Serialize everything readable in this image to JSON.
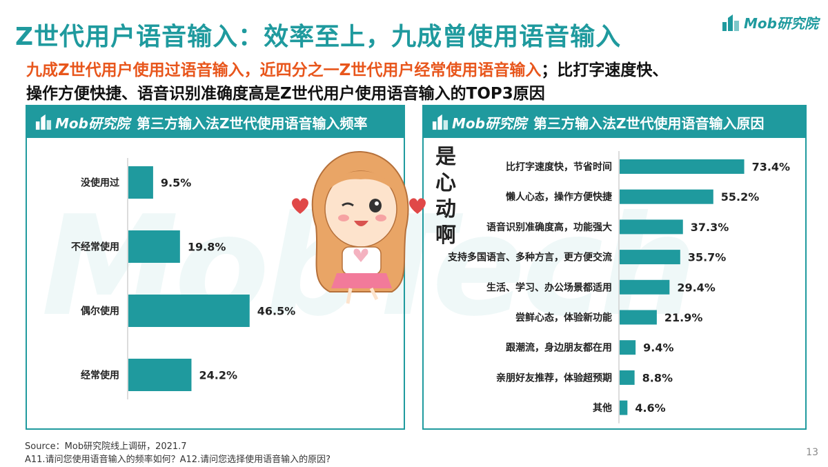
{
  "header": {
    "title": "Z世代用户语音输入：效率至上，九成曾使用语音输入",
    "brand": "Mob研究院"
  },
  "subtitle": {
    "highlight": "九成Z世代用户使用过语音输入，近四分之一Z世代用户经常使用语音输入",
    "rest": "；比打字速度快、",
    "line2": "操作方便快捷、语音识别准确度高是Z世代用户使用语音输入的TOP3原因"
  },
  "panel_left": {
    "brand": "Mob研究院",
    "title": "第三方输入法Z世代使用语音输入频率"
  },
  "panel_right": {
    "brand": "Mob研究院",
    "title": "第三方输入法Z世代使用语音输入原因"
  },
  "decoration": {
    "vertical_text": [
      "是",
      "心",
      "动",
      "啊"
    ],
    "watermark": "MobTech"
  },
  "chart_data": [
    {
      "type": "bar",
      "orientation": "horizontal",
      "title": "第三方输入法Z世代使用语音输入频率",
      "categories": [
        "没使用过",
        "不经常使用",
        "偶尔使用",
        "经常使用"
      ],
      "values": [
        9.5,
        19.8,
        46.5,
        24.2
      ],
      "value_labels": [
        "9.5%",
        "19.8%",
        "46.5%",
        "24.2%"
      ],
      "unit": "%",
      "xlim": [
        0,
        100
      ],
      "color": "#1f9a9e"
    },
    {
      "type": "bar",
      "orientation": "horizontal",
      "title": "第三方输入法Z世代使用语音输入原因",
      "categories": [
        "比打字速度快，节省时间",
        "懒人心态，操作方便快捷",
        "语音识别准确度高，功能强大",
        "支持多国语言、多种方言，更方便交流",
        "生活、学习、办公场景都适用",
        "尝鲜心态，体验新功能",
        "跟潮流，身边朋友都在用",
        "亲朋好友推荐，体验超预期",
        "其他"
      ],
      "values": [
        73.4,
        55.2,
        37.3,
        35.7,
        29.4,
        21.9,
        9.4,
        8.8,
        4.6
      ],
      "value_labels": [
        "73.4%",
        "55.2%",
        "37.3%",
        "35.7%",
        "29.4%",
        "21.9%",
        "9.4%",
        "8.8%",
        "4.6%"
      ],
      "unit": "%",
      "xlim": [
        0,
        100
      ],
      "color": "#1f9a9e"
    }
  ],
  "footer": {
    "source": "Source：Mob研究院线上调研，2021.7",
    "question": "A11.请问您使用语音输入的频率如何？A12.请问您选择使用语音输入的原因?",
    "page": "13"
  },
  "colors": {
    "accent": "#1f9a9e",
    "highlight": "#e8561c"
  }
}
